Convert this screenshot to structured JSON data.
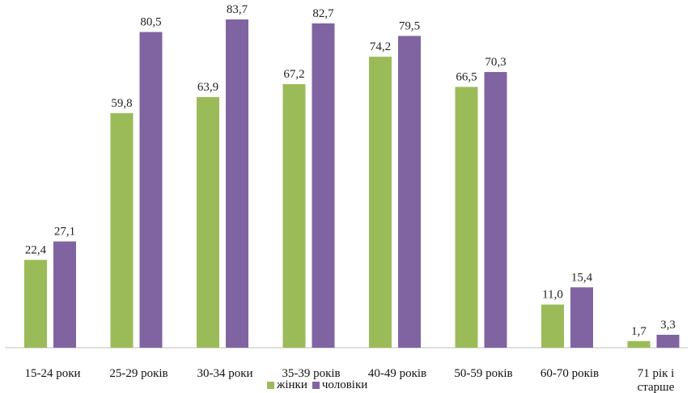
{
  "chart_data": {
    "type": "bar",
    "categories": [
      [
        "15-24 роки"
      ],
      [
        "25-29 років"
      ],
      [
        "30-34 роки"
      ],
      [
        "35-39 років"
      ],
      [
        "40-49 років"
      ],
      [
        "50-59 років"
      ],
      [
        "60-70 років"
      ],
      [
        "71 рік і",
        "старше"
      ]
    ],
    "series": [
      {
        "name": "жінки",
        "color": "#9bbb59",
        "values": [
          22.4,
          59.8,
          63.9,
          67.2,
          74.2,
          66.5,
          11.0,
          1.7
        ],
        "labels": [
          "22,4",
          "59,8",
          "63,9",
          "67,2",
          "74,2",
          "66,5",
          "11,0",
          "1,7"
        ]
      },
      {
        "name": "чоловіки",
        "color": "#8064a2",
        "values": [
          27.1,
          80.5,
          83.7,
          82.7,
          79.5,
          70.3,
          15.4,
          3.3
        ],
        "labels": [
          "27,1",
          "80,5",
          "83,7",
          "82,7",
          "79,5",
          "70,3",
          "15,4",
          "3,3"
        ]
      }
    ],
    "ylim": [
      0,
      90
    ],
    "grid": false,
    "legend_position": "bottom"
  }
}
